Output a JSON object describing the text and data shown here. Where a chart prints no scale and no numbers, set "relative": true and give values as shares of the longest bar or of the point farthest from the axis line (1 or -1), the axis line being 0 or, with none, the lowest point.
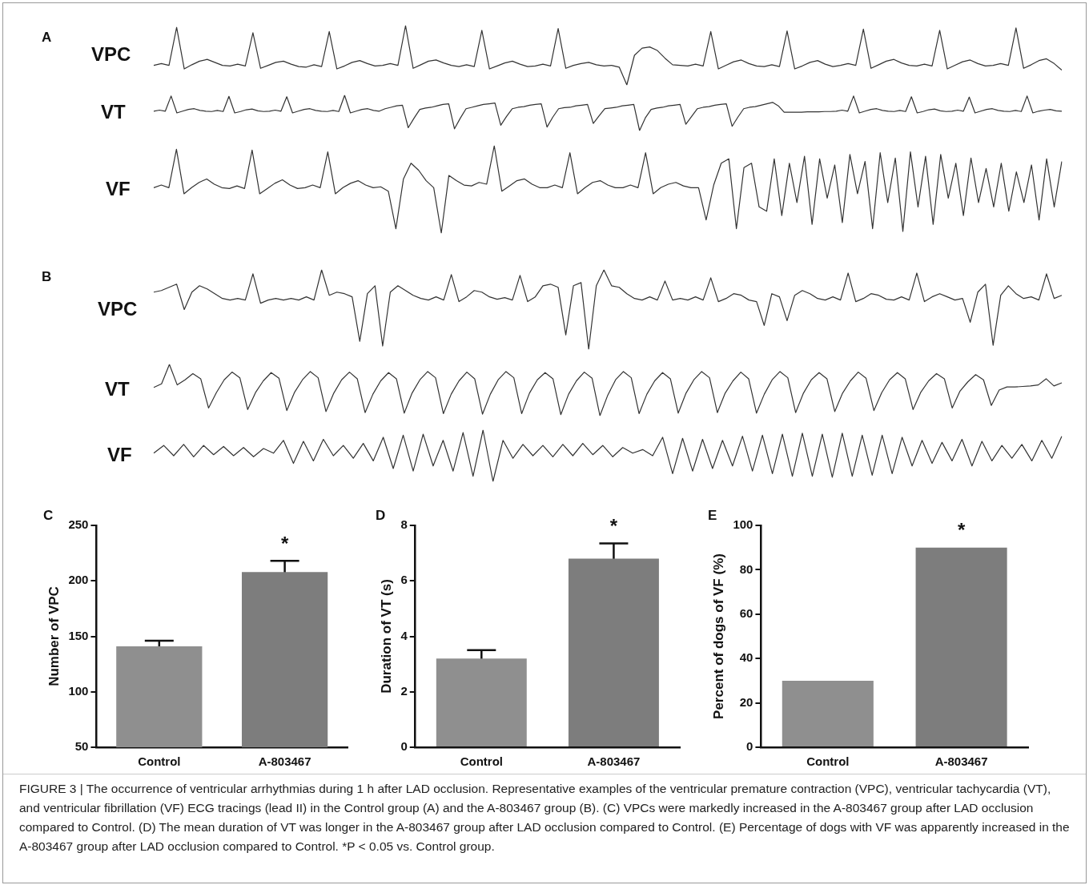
{
  "chart_data": [
    {
      "type": "line",
      "relative": true,
      "title": "VPC",
      "annotations": [
        "A"
      ],
      "color": "#333333",
      "categories": [
        null,
        null,
        null,
        null,
        null,
        null,
        null,
        null,
        null,
        null,
        null,
        null,
        null,
        null,
        null,
        null,
        null,
        null,
        null,
        null,
        null,
        null,
        null,
        null,
        null,
        null,
        null,
        null,
        null,
        null,
        null,
        null,
        null,
        null,
        null,
        null,
        null,
        null,
        null,
        null,
        null,
        null,
        null,
        null,
        null,
        null,
        null,
        null,
        null,
        null,
        null,
        null,
        null,
        null,
        null,
        null,
        null,
        null,
        null,
        null,
        null,
        null,
        null,
        null,
        null,
        null,
        null,
        null,
        null,
        null,
        null,
        null,
        null,
        null,
        null,
        null,
        null,
        null,
        null,
        null,
        null,
        null,
        null,
        null,
        null,
        null,
        null,
        null,
        null,
        null,
        null,
        null,
        null,
        null,
        null,
        null,
        null,
        null,
        null,
        null,
        null,
        null,
        null,
        null,
        null,
        null,
        null,
        null,
        null,
        null,
        null,
        null,
        null,
        null,
        null,
        null,
        null,
        null,
        null,
        null
      ],
      "values": [
        0.33,
        0.36,
        0.33,
        0.97,
        0.27,
        0.34,
        0.4,
        0.43,
        0.38,
        0.33,
        0.32,
        0.35,
        0.32,
        0.88,
        0.28,
        0.33,
        0.38,
        0.4,
        0.35,
        0.31,
        0.3,
        0.34,
        0.31,
        0.9,
        0.27,
        0.32,
        0.38,
        0.41,
        0.36,
        0.32,
        0.33,
        0.36,
        0.33,
        1.0,
        0.28,
        0.34,
        0.4,
        0.42,
        0.37,
        0.33,
        0.31,
        0.34,
        0.31,
        0.92,
        0.27,
        0.32,
        0.37,
        0.4,
        0.35,
        0.31,
        0.32,
        0.35,
        0.32,
        0.95,
        0.28,
        0.33,
        0.36,
        0.38,
        0.34,
        0.32,
        0.33,
        0.3,
        0.0,
        0.5,
        0.62,
        0.64,
        0.58,
        0.45,
        0.34,
        0.33,
        0.32,
        0.35,
        0.32,
        0.9,
        0.27,
        0.33,
        0.39,
        0.42,
        0.36,
        0.32,
        0.31,
        0.34,
        0.31,
        0.91,
        0.27,
        0.32,
        0.38,
        0.41,
        0.35,
        0.31,
        0.33,
        0.36,
        0.33,
        0.94,
        0.28,
        0.34,
        0.4,
        0.43,
        0.37,
        0.33,
        0.32,
        0.35,
        0.32,
        0.92,
        0.27,
        0.33,
        0.39,
        0.42,
        0.36,
        0.32,
        0.33,
        0.36,
        0.33,
        0.96,
        0.28,
        0.34,
        0.41,
        0.44,
        0.36,
        0.25
      ]
    },
    {
      "type": "line",
      "relative": true,
      "title": "VT",
      "color": "#333333",
      "categories": [
        null,
        null,
        null,
        null,
        null,
        null,
        null,
        null,
        null,
        null,
        null,
        null,
        null,
        null,
        null,
        null,
        null,
        null,
        null,
        null,
        null,
        null,
        null,
        null,
        null,
        null,
        null,
        null,
        null,
        null,
        null,
        null,
        null,
        null,
        null,
        null,
        null,
        null,
        null,
        null,
        null,
        null,
        null,
        null,
        null,
        null,
        null,
        null,
        null,
        null,
        null,
        null,
        null,
        null,
        null,
        null,
        null,
        null,
        null,
        null,
        null,
        null,
        null,
        null,
        null,
        null,
        null,
        null,
        null,
        null,
        null,
        null,
        null,
        null,
        null,
        null,
        null,
        null,
        null,
        null,
        null,
        null,
        null,
        null,
        null,
        null,
        null,
        null,
        null,
        null,
        null,
        null,
        null,
        null,
        null,
        null,
        null,
        null,
        null,
        null,
        null,
        null,
        null,
        null,
        null,
        null,
        null,
        null,
        null,
        null,
        null,
        null,
        null,
        null,
        null,
        null,
        null,
        null,
        null,
        null,
        null,
        null,
        null,
        null,
        null,
        null,
        null,
        null,
        null,
        null,
        null,
        null,
        null,
        null,
        null,
        null,
        null,
        null,
        null,
        null,
        null,
        null,
        null,
        null,
        null,
        null,
        null,
        null,
        null,
        null,
        null,
        null,
        null,
        null,
        null,
        null,
        null,
        null
      ],
      "values": [
        0.55,
        0.58,
        0.55,
        0.98,
        0.5,
        0.55,
        0.6,
        0.62,
        0.57,
        0.55,
        0.54,
        0.57,
        0.54,
        0.97,
        0.5,
        0.54,
        0.59,
        0.61,
        0.56,
        0.54,
        0.55,
        0.58,
        0.55,
        0.96,
        0.5,
        0.55,
        0.6,
        0.62,
        0.57,
        0.55,
        0.54,
        0.57,
        0.54,
        1.0,
        0.5,
        0.55,
        0.6,
        0.62,
        0.57,
        0.55,
        0.62,
        0.66,
        0.7,
        0.72,
        0.08,
        0.35,
        0.6,
        0.64,
        0.66,
        0.7,
        0.74,
        0.76,
        0.05,
        0.35,
        0.62,
        0.66,
        0.7,
        0.74,
        0.76,
        0.78,
        0.15,
        0.4,
        0.62,
        0.66,
        0.68,
        0.72,
        0.74,
        0.76,
        0.1,
        0.38,
        0.62,
        0.65,
        0.66,
        0.7,
        0.72,
        0.74,
        0.2,
        0.42,
        0.62,
        0.64,
        0.66,
        0.7,
        0.72,
        0.74,
        0.0,
        0.36,
        0.6,
        0.64,
        0.66,
        0.7,
        0.72,
        0.74,
        0.18,
        0.4,
        0.62,
        0.66,
        0.68,
        0.72,
        0.74,
        0.76,
        0.12,
        0.38,
        0.62,
        0.66,
        0.68,
        0.72,
        0.76,
        0.8,
        0.7,
        0.52,
        0.52,
        0.52,
        0.52,
        0.53,
        0.53,
        0.53,
        0.54,
        0.54,
        0.55,
        0.58,
        0.55,
        0.98,
        0.5,
        0.55,
        0.6,
        0.62,
        0.57,
        0.55,
        0.54,
        0.57,
        0.54,
        0.96,
        0.5,
        0.54,
        0.59,
        0.61,
        0.56,
        0.54,
        0.55,
        0.58,
        0.55,
        0.95,
        0.5,
        0.55,
        0.6,
        0.62,
        0.57,
        0.55,
        0.54,
        0.57,
        0.54,
        0.98,
        0.5,
        0.55,
        0.58,
        0.6,
        0.56,
        0.55
      ]
    },
    {
      "type": "line",
      "relative": true,
      "title": "VF",
      "color": "#333333",
      "categories": [
        null,
        null,
        null,
        null,
        null,
        null,
        null,
        null,
        null,
        null,
        null,
        null,
        null,
        null,
        null,
        null,
        null,
        null,
        null,
        null,
        null,
        null,
        null,
        null,
        null,
        null,
        null,
        null,
        null,
        null,
        null,
        null,
        null,
        null,
        null,
        null,
        null,
        null,
        null,
        null,
        null,
        null,
        null,
        null,
        null,
        null,
        null,
        null,
        null,
        null,
        null,
        null,
        null,
        null,
        null,
        null,
        null,
        null,
        null,
        null,
        null,
        null,
        null,
        null,
        null,
        null,
        null,
        null,
        null,
        null,
        null,
        null,
        null,
        null,
        null,
        null,
        null,
        null,
        null,
        null,
        null,
        null,
        null,
        null,
        null,
        null,
        null,
        null,
        null,
        null,
        null,
        null,
        null,
        null,
        null,
        null,
        null,
        null,
        null,
        null,
        null,
        null,
        null,
        null,
        null,
        null,
        null,
        null,
        null,
        null,
        null,
        null,
        null,
        null,
        null,
        null,
        null,
        null,
        null,
        null,
        null
      ],
      "values": [
        0.52,
        0.55,
        0.52,
        0.96,
        0.45,
        0.52,
        0.58,
        0.62,
        0.56,
        0.52,
        0.51,
        0.54,
        0.51,
        0.95,
        0.45,
        0.51,
        0.57,
        0.61,
        0.55,
        0.51,
        0.52,
        0.55,
        0.52,
        0.93,
        0.45,
        0.52,
        0.57,
        0.6,
        0.55,
        0.52,
        0.53,
        0.48,
        0.05,
        0.62,
        0.8,
        0.72,
        0.6,
        0.52,
        0.0,
        0.66,
        0.6,
        0.55,
        0.54,
        0.58,
        0.56,
        1.0,
        0.48,
        0.54,
        0.6,
        0.62,
        0.56,
        0.52,
        0.52,
        0.55,
        0.52,
        0.92,
        0.45,
        0.52,
        0.58,
        0.6,
        0.55,
        0.52,
        0.52,
        0.55,
        0.52,
        0.92,
        0.45,
        0.52,
        0.56,
        0.58,
        0.54,
        0.52,
        0.52,
        0.15,
        0.55,
        0.8,
        0.85,
        0.05,
        0.75,
        0.8,
        0.3,
        0.25,
        0.85,
        0.2,
        0.8,
        0.35,
        0.88,
        0.1,
        0.85,
        0.4,
        0.78,
        0.12,
        0.9,
        0.45,
        0.82,
        0.05,
        0.92,
        0.35,
        0.86,
        0.02,
        0.93,
        0.3,
        0.88,
        0.1,
        0.9,
        0.4,
        0.8,
        0.2,
        0.86,
        0.35,
        0.74,
        0.3,
        0.8,
        0.25,
        0.7,
        0.35,
        0.78,
        0.15,
        0.85,
        0.3,
        0.82
      ]
    },
    {
      "type": "line",
      "relative": true,
      "title": "VPC",
      "annotations": [
        "B"
      ],
      "color": "#333333",
      "categories": [
        null,
        null,
        null,
        null,
        null,
        null,
        null,
        null,
        null,
        null,
        null,
        null,
        null,
        null,
        null,
        null,
        null,
        null,
        null,
        null,
        null,
        null,
        null,
        null,
        null,
        null,
        null,
        null,
        null,
        null,
        null,
        null,
        null,
        null,
        null,
        null,
        null,
        null,
        null,
        null,
        null,
        null,
        null,
        null,
        null,
        null,
        null,
        null,
        null,
        null,
        null,
        null,
        null,
        null,
        null,
        null,
        null,
        null,
        null,
        null,
        null,
        null,
        null,
        null,
        null,
        null,
        null,
        null,
        null,
        null,
        null,
        null,
        null,
        null,
        null,
        null,
        null,
        null,
        null,
        null,
        null,
        null,
        null,
        null,
        null,
        null,
        null,
        null,
        null,
        null,
        null,
        null,
        null,
        null,
        null,
        null,
        null,
        null,
        null,
        null,
        null,
        null,
        null,
        null,
        null,
        null,
        null,
        null,
        null,
        null,
        null,
        null,
        null,
        null,
        null,
        null,
        null,
        null,
        null,
        null
      ],
      "values": [
        0.72,
        0.74,
        0.78,
        0.82,
        0.5,
        0.72,
        0.8,
        0.76,
        0.7,
        0.64,
        0.62,
        0.64,
        0.62,
        0.95,
        0.58,
        0.62,
        0.64,
        0.62,
        0.64,
        0.62,
        0.66,
        0.62,
        1.0,
        0.68,
        0.72,
        0.7,
        0.66,
        0.1,
        0.7,
        0.8,
        0.04,
        0.72,
        0.8,
        0.74,
        0.68,
        0.64,
        0.62,
        0.66,
        0.62,
        0.94,
        0.6,
        0.66,
        0.74,
        0.72,
        0.66,
        0.63,
        0.65,
        0.62,
        0.93,
        0.6,
        0.66,
        0.8,
        0.82,
        0.78,
        0.18,
        0.8,
        0.84,
        0.0,
        0.8,
        1.0,
        0.8,
        0.78,
        0.7,
        0.64,
        0.62,
        0.66,
        0.62,
        0.86,
        0.62,
        0.64,
        0.62,
        0.66,
        0.62,
        0.9,
        0.6,
        0.64,
        0.7,
        0.68,
        0.62,
        0.6,
        0.3,
        0.7,
        0.66,
        0.36,
        0.68,
        0.74,
        0.7,
        0.64,
        0.62,
        0.66,
        0.62,
        0.96,
        0.6,
        0.64,
        0.7,
        0.68,
        0.63,
        0.62,
        0.66,
        0.62,
        0.96,
        0.6,
        0.66,
        0.7,
        0.66,
        0.62,
        0.64,
        0.34,
        0.72,
        0.82,
        0.05,
        0.68,
        0.8,
        0.7,
        0.64,
        0.66,
        0.62,
        0.95,
        0.64,
        0.68
      ]
    },
    {
      "type": "line",
      "relative": true,
      "title": "VT",
      "color": "#333333",
      "categories": [
        null,
        null,
        null,
        null,
        null,
        null,
        null,
        null,
        null,
        null,
        null,
        null,
        null,
        null,
        null,
        null,
        null,
        null,
        null,
        null,
        null,
        null,
        null,
        null,
        null,
        null,
        null,
        null,
        null,
        null,
        null,
        null,
        null,
        null,
        null,
        null,
        null,
        null,
        null,
        null,
        null,
        null,
        null,
        null,
        null,
        null,
        null,
        null,
        null,
        null,
        null,
        null,
        null,
        null,
        null,
        null,
        null,
        null,
        null,
        null,
        null,
        null,
        null,
        null,
        null,
        null,
        null,
        null,
        null,
        null,
        null,
        null,
        null,
        null,
        null,
        null,
        null,
        null,
        null,
        null,
        null,
        null,
        null,
        null,
        null,
        null,
        null,
        null,
        null,
        null,
        null,
        null,
        null,
        null,
        null,
        null,
        null,
        null,
        null,
        null,
        null,
        null,
        null,
        null,
        null,
        null,
        null,
        null,
        null,
        null,
        null,
        null,
        null,
        null,
        null,
        null,
        null
      ],
      "values": [
        0.55,
        0.62,
        1.0,
        0.6,
        0.7,
        0.82,
        0.72,
        0.15,
        0.45,
        0.7,
        0.85,
        0.74,
        0.12,
        0.45,
        0.68,
        0.84,
        0.73,
        0.1,
        0.46,
        0.7,
        0.86,
        0.74,
        0.08,
        0.44,
        0.7,
        0.85,
        0.72,
        0.06,
        0.42,
        0.68,
        0.84,
        0.72,
        0.05,
        0.44,
        0.7,
        0.86,
        0.74,
        0.04,
        0.42,
        0.68,
        0.85,
        0.72,
        0.03,
        0.42,
        0.7,
        0.86,
        0.74,
        0.04,
        0.44,
        0.7,
        0.84,
        0.72,
        0.02,
        0.42,
        0.68,
        0.85,
        0.73,
        0.0,
        0.4,
        0.7,
        0.86,
        0.74,
        0.04,
        0.42,
        0.68,
        0.84,
        0.72,
        0.05,
        0.44,
        0.7,
        0.86,
        0.74,
        0.06,
        0.44,
        0.68,
        0.85,
        0.72,
        0.05,
        0.42,
        0.7,
        0.86,
        0.74,
        0.06,
        0.44,
        0.7,
        0.84,
        0.72,
        0.08,
        0.44,
        0.68,
        0.85,
        0.73,
        0.1,
        0.45,
        0.7,
        0.84,
        0.72,
        0.12,
        0.46,
        0.68,
        0.82,
        0.72,
        0.15,
        0.48,
        0.66,
        0.8,
        0.7,
        0.2,
        0.5,
        0.56,
        0.56,
        0.57,
        0.58,
        0.6,
        0.72,
        0.58,
        0.64
      ]
    },
    {
      "type": "line",
      "relative": true,
      "title": "VF",
      "color": "#333333",
      "categories": [
        null,
        null,
        null,
        null,
        null,
        null,
        null,
        null,
        null,
        null,
        null,
        null,
        null,
        null,
        null,
        null,
        null,
        null,
        null,
        null,
        null,
        null,
        null,
        null,
        null,
        null,
        null,
        null,
        null,
        null,
        null,
        null,
        null,
        null,
        null,
        null,
        null,
        null,
        null,
        null,
        null,
        null,
        null,
        null,
        null,
        null,
        null,
        null,
        null,
        null,
        null,
        null,
        null,
        null,
        null,
        null,
        null,
        null,
        null,
        null,
        null,
        null,
        null,
        null,
        null,
        null,
        null,
        null,
        null,
        null,
        null,
        null,
        null,
        null,
        null,
        null,
        null,
        null,
        null,
        null,
        null,
        null,
        null,
        null,
        null,
        null,
        null,
        null,
        null,
        null,
        null,
        null
      ],
      "values": [
        0.55,
        0.7,
        0.5,
        0.72,
        0.48,
        0.7,
        0.52,
        0.68,
        0.5,
        0.66,
        0.48,
        0.64,
        0.55,
        0.8,
        0.35,
        0.78,
        0.4,
        0.82,
        0.5,
        0.7,
        0.45,
        0.74,
        0.4,
        0.86,
        0.25,
        0.9,
        0.2,
        0.92,
        0.3,
        0.8,
        0.2,
        0.95,
        0.1,
        1.0,
        0.0,
        0.8,
        0.45,
        0.72,
        0.5,
        0.7,
        0.48,
        0.72,
        0.5,
        0.74,
        0.52,
        0.7,
        0.48,
        0.66,
        0.55,
        0.62,
        0.5,
        0.86,
        0.15,
        0.84,
        0.2,
        0.82,
        0.25,
        0.8,
        0.3,
        0.88,
        0.2,
        0.9,
        0.15,
        0.92,
        0.1,
        0.94,
        0.1,
        0.92,
        0.08,
        0.94,
        0.1,
        0.9,
        0.12,
        0.9,
        0.15,
        0.86,
        0.3,
        0.8,
        0.35,
        0.76,
        0.4,
        0.82,
        0.3,
        0.78,
        0.4,
        0.7,
        0.45,
        0.72,
        0.4,
        0.8,
        0.45,
        0.88
      ]
    },
    {
      "type": "bar",
      "annotations": [
        "C",
        "*"
      ],
      "ylabel": "Number of VPC",
      "categories": [
        "Control",
        "A-803467"
      ],
      "values": [
        141,
        208
      ],
      "errors": [
        5,
        10
      ],
      "colors": [
        "#8f8f8f",
        "#7d7d7d"
      ],
      "ylim": [
        50,
        250
      ],
      "yticks": [
        50,
        100,
        150,
        200,
        250
      ]
    },
    {
      "type": "bar",
      "annotations": [
        "D",
        "*"
      ],
      "ylabel": "Duration of VT (s)",
      "categories": [
        "Control",
        "A-803467"
      ],
      "values": [
        3.2,
        6.8
      ],
      "errors": [
        0.3,
        0.55
      ],
      "colors": [
        "#8f8f8f",
        "#7d7d7d"
      ],
      "ylim": [
        0,
        8
      ],
      "yticks": [
        0,
        2,
        4,
        6,
        8
      ]
    },
    {
      "type": "bar",
      "annotations": [
        "E",
        "*",
        "FIGURE 3 | The occurrence of ventricular arrhythmias during 1 h after LAD occlusion. Representative examples of the ventricular premature contraction (VPC), ventricular tachycardia (VT), and ventricular fibrillation (VF) ECG tracings (lead II) in the Control group (A) and the A-803467 group (B). (C) VPCs were markedly increased in the A-803467 group after LAD occlusion compared to Control. (D) The mean duration of VT was longer in the A-803467 group after LAD occlusion compared to Control. (E) Percentage of dogs with VF was apparently increased in the A-803467 group after LAD occlusion compared to Control. *P < 0.05 vs. Control group."
      ],
      "ylabel": "Percent of dogs of VF (%)",
      "categories": [
        "Control",
        "A-803467"
      ],
      "values": [
        30,
        90
      ],
      "colors": [
        "#8f8f8f",
        "#7d7d7d"
      ],
      "ylim": [
        0,
        100
      ],
      "yticks": [
        0,
        20,
        40,
        60,
        80,
        100
      ]
    }
  ]
}
